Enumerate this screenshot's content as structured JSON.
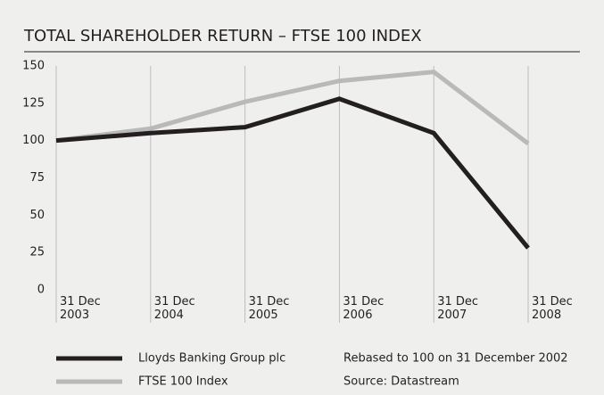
{
  "chart_data": {
    "type": "line",
    "title": "TOTAL SHAREHOLDER RETURN – FTSE 100 INDEX",
    "categories": [
      "31 Dec 2003",
      "31 Dec 2004",
      "31 Dec 2005",
      "31 Dec 2006",
      "31 Dec 2007",
      "31 Dec 2008"
    ],
    "series": [
      {
        "name": "Lloyds Banking Group plc",
        "color": "#231f20",
        "values": [
          100,
          105,
          109,
          128,
          105,
          28
        ]
      },
      {
        "name": "FTSE 100 Index",
        "color": "#b9b9b9",
        "values": [
          100,
          108,
          126,
          140,
          146,
          98
        ]
      }
    ],
    "ylim": [
      0,
      150
    ],
    "yticks": [
      0,
      25,
      50,
      75,
      100,
      125,
      150
    ],
    "notes": [
      "Rebased to 100 on 31 December 2002",
      "Source: Datastream"
    ]
  }
}
